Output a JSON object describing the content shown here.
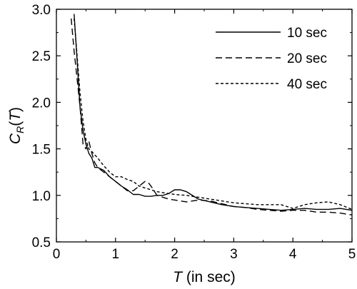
{
  "chart_data": {
    "type": "line",
    "xlabel": {
      "var": "T",
      "rest": " (in sec)"
    },
    "ylabel": {
      "main": "C",
      "sub": "R",
      "open": "(",
      "var": "T",
      "close": ")"
    },
    "xlim": [
      0,
      5
    ],
    "ylim": [
      0.5,
      3.0
    ],
    "xticks": [
      0,
      1,
      2,
      3,
      4,
      5
    ],
    "yticks": [
      0.5,
      1.0,
      1.5,
      2.0,
      2.5,
      3.0
    ],
    "xtick_labels": [
      "0",
      "1",
      "2",
      "3",
      "4",
      "5"
    ],
    "ytick_labels": [
      "0.5",
      "1.0",
      "1.5",
      "2.0",
      "2.5",
      "3.0"
    ],
    "grid": false,
    "legend_position": "top-right",
    "series": [
      {
        "name": "10 sec",
        "style": "solid",
        "x": [
          0.3,
          0.35,
          0.4,
          0.45,
          0.5,
          0.55,
          0.6,
          0.65,
          0.7,
          0.8,
          0.9,
          1.0,
          1.1,
          1.2,
          1.3,
          1.4,
          1.5,
          1.6,
          1.7,
          1.8,
          1.9,
          2.0,
          2.1,
          2.2,
          2.4,
          2.6,
          2.8,
          3.0,
          3.2,
          3.4,
          3.6,
          3.8,
          4.0,
          4.2,
          4.4,
          4.6,
          4.8,
          5.0
        ],
        "y": [
          2.95,
          2.45,
          1.95,
          1.7,
          1.55,
          1.45,
          1.4,
          1.3,
          1.3,
          1.27,
          1.2,
          1.15,
          1.1,
          1.06,
          1.01,
          1.01,
          0.99,
          0.99,
          1.0,
          1.0,
          1.02,
          1.06,
          1.06,
          1.04,
          0.96,
          0.93,
          0.9,
          0.88,
          0.87,
          0.86,
          0.85,
          0.84,
          0.85,
          0.86,
          0.85,
          0.85,
          0.86,
          0.84
        ]
      },
      {
        "name": "20 sec",
        "style": "dashed",
        "x": [
          0.25,
          0.3,
          0.35,
          0.4,
          0.45,
          0.5,
          0.55,
          0.6,
          0.65,
          0.7,
          0.8,
          0.9,
          1.0,
          1.1,
          1.2,
          1.3,
          1.4,
          1.5,
          1.55,
          1.6,
          1.7,
          1.8,
          1.9,
          2.0,
          2.2,
          2.4,
          2.6,
          2.8,
          3.0,
          3.2,
          3.4,
          3.6,
          3.8,
          4.0,
          4.2,
          4.4,
          4.6,
          4.8,
          5.0
        ],
        "y": [
          2.9,
          2.55,
          2.25,
          1.95,
          1.55,
          1.5,
          1.58,
          1.45,
          1.35,
          1.3,
          1.25,
          1.2,
          1.15,
          1.1,
          1.05,
          1.05,
          1.1,
          1.15,
          1.14,
          1.1,
          1.0,
          0.98,
          0.96,
          0.95,
          0.93,
          0.95,
          0.94,
          0.91,
          0.88,
          0.87,
          0.85,
          0.84,
          0.83,
          0.84,
          0.84,
          0.82,
          0.82,
          0.81,
          0.79
        ]
      },
      {
        "name": "40 sec",
        "style": "dotted",
        "x": [
          0.3,
          0.35,
          0.4,
          0.45,
          0.5,
          0.55,
          0.6,
          0.7,
          0.8,
          0.9,
          1.0,
          1.1,
          1.2,
          1.3,
          1.4,
          1.5,
          1.6,
          1.7,
          1.8,
          2.0,
          2.2,
          2.4,
          2.6,
          2.8,
          3.0,
          3.2,
          3.4,
          3.6,
          3.8,
          4.0,
          4.2,
          4.4,
          4.6,
          4.8,
          5.0
        ],
        "y": [
          2.9,
          2.5,
          2.1,
          1.8,
          1.6,
          1.5,
          1.47,
          1.4,
          1.32,
          1.25,
          1.2,
          1.2,
          1.17,
          1.15,
          1.1,
          1.08,
          1.06,
          1.04,
          1.03,
          1.01,
          1.0,
          0.98,
          0.96,
          0.94,
          0.92,
          0.91,
          0.9,
          0.9,
          0.9,
          0.86,
          0.9,
          0.92,
          0.93,
          0.9,
          0.85
        ]
      }
    ]
  }
}
